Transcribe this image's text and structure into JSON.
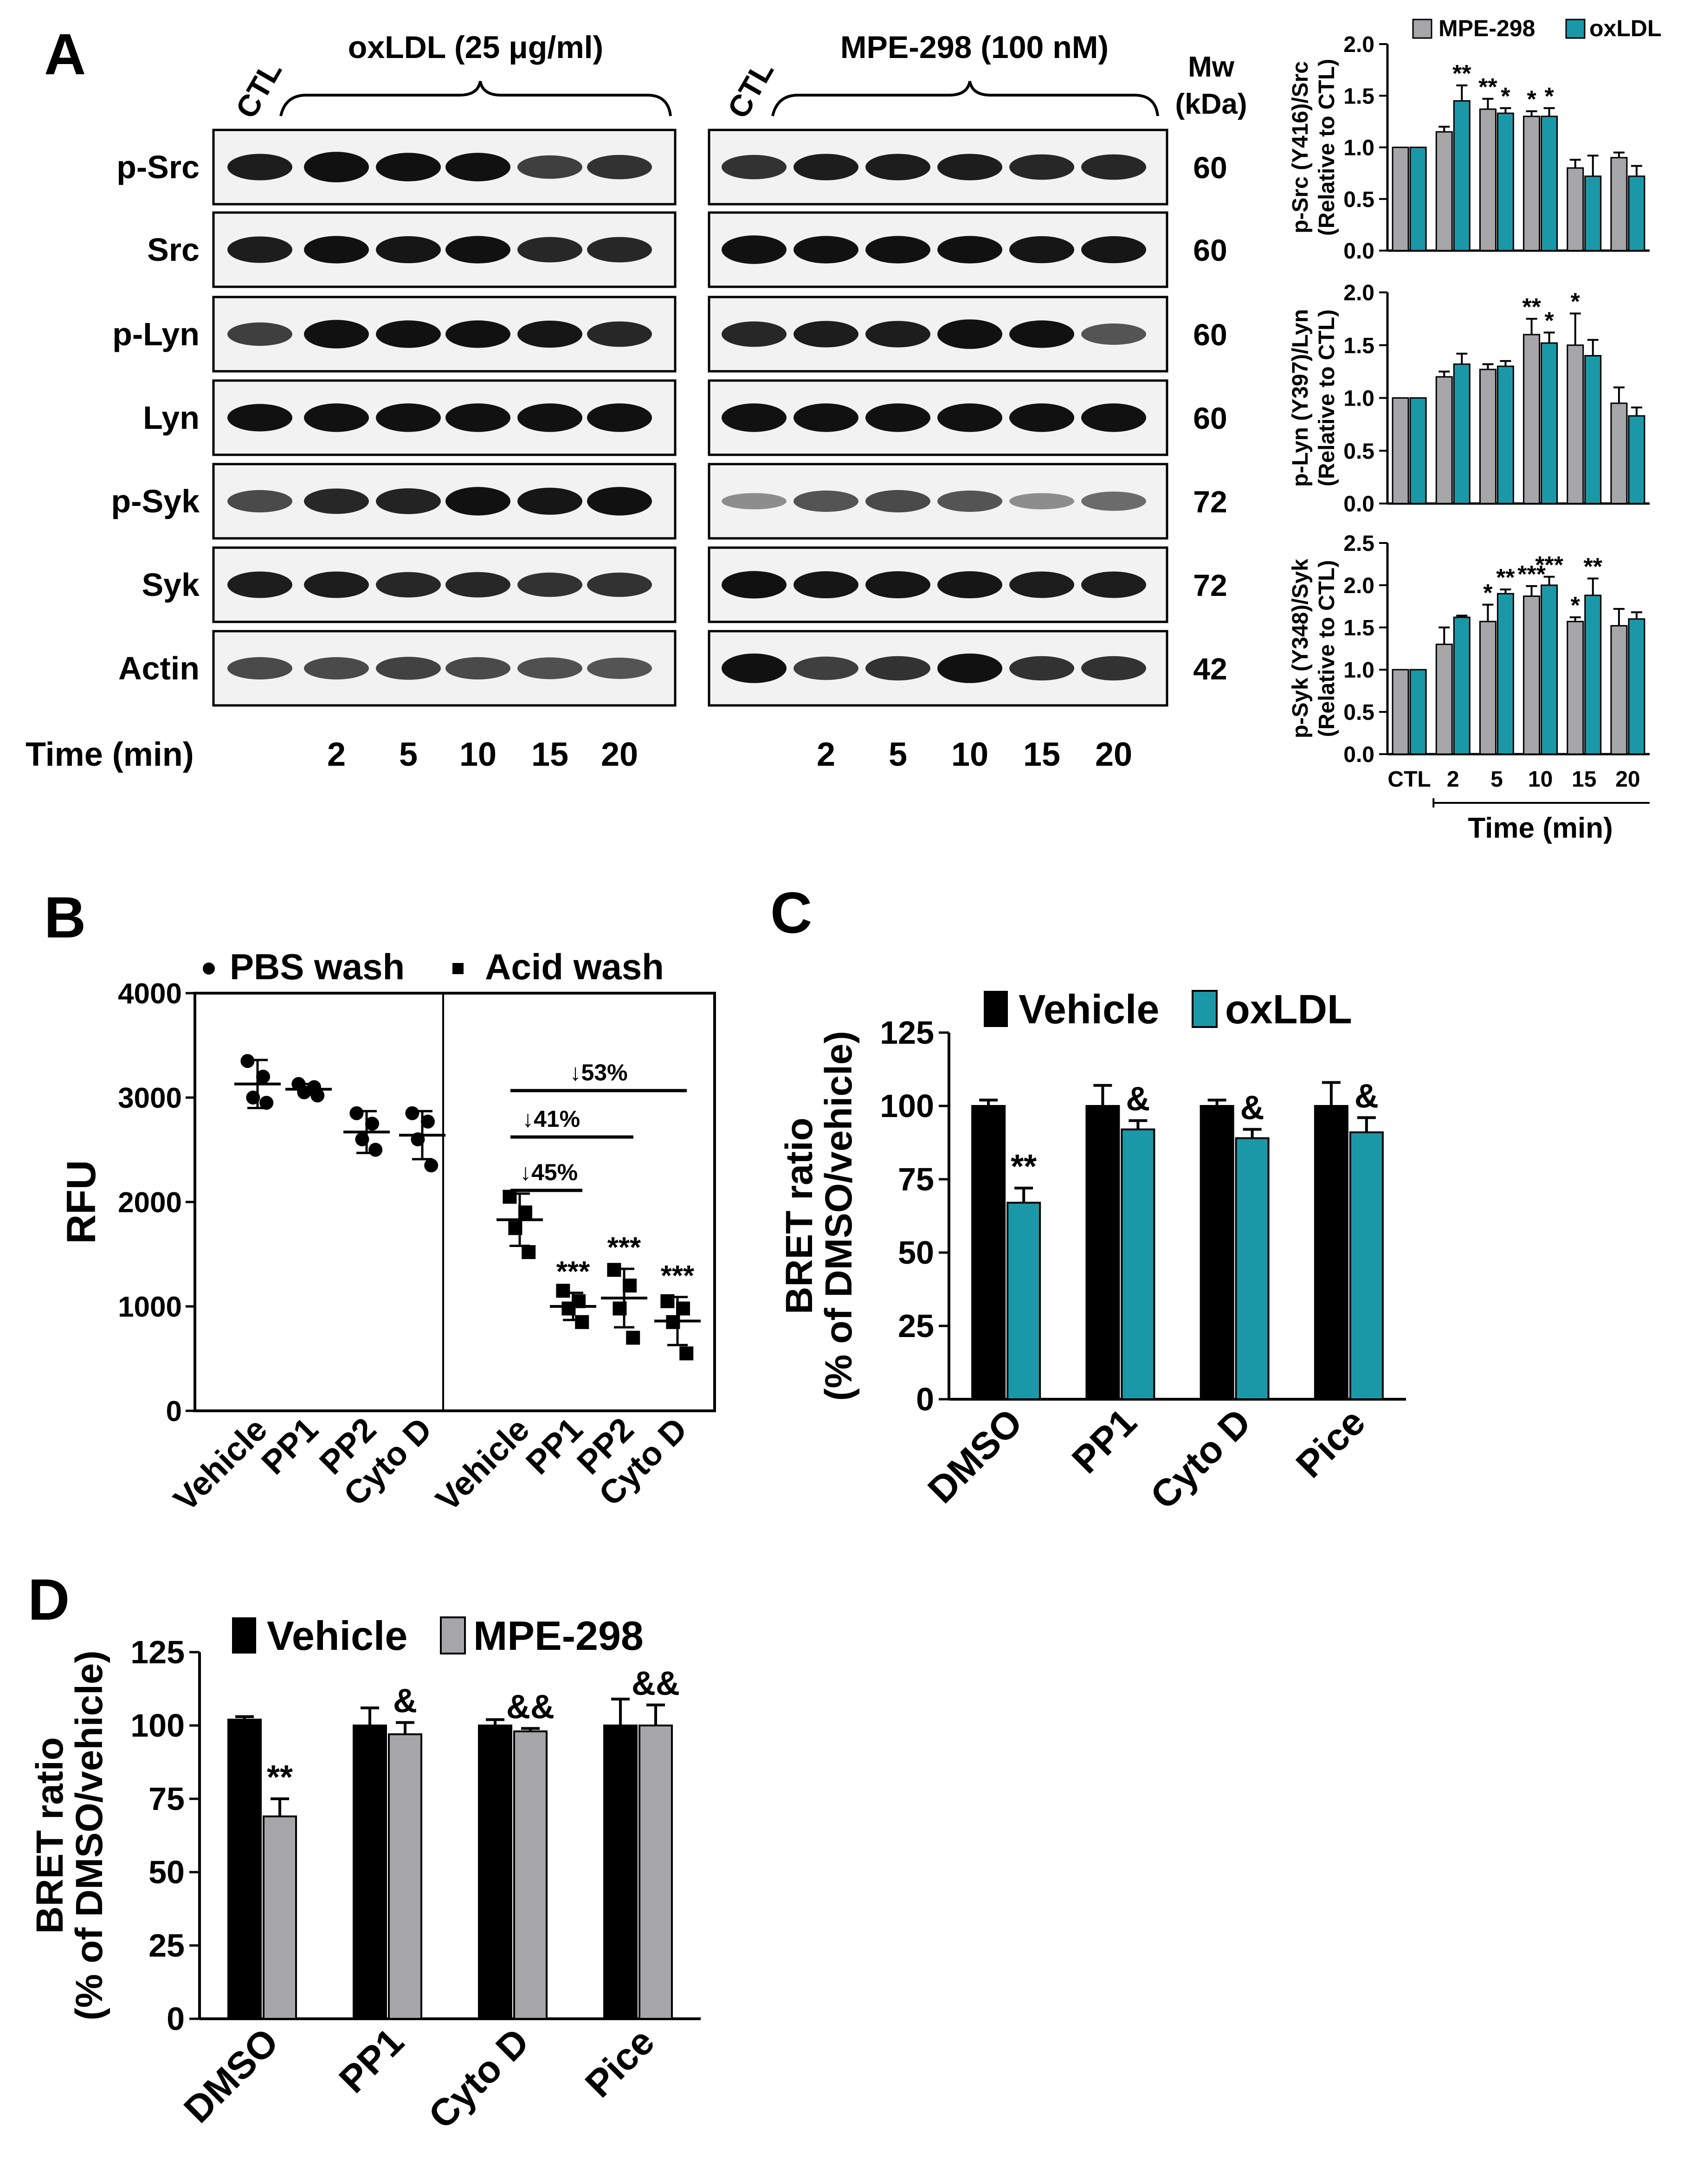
{
  "panels": {
    "a": "A",
    "b": "B",
    "c": "C",
    "d": "D"
  },
  "blot": {
    "proteins": [
      "p-Src",
      "Src",
      "p-Lyn",
      "Lyn",
      "p-Syk",
      "Syk",
      "Actin"
    ],
    "mw": [
      "60",
      "60",
      "60",
      "60",
      "72",
      "72",
      "42"
    ],
    "mw_header": [
      "Mw",
      "(kDa)"
    ],
    "left_header": "oxLDL (25 μg/ml)",
    "right_header": "MPE-298 (100 nM)",
    "ctl_label": "CTL",
    "time_label": "Time (min)",
    "time_points": [
      "2",
      "5",
      "10",
      "15",
      "20"
    ],
    "colors": {
      "band": "#111111",
      "background": "#f2f2f2"
    }
  },
  "colors": {
    "mpe": "#a6a6a8",
    "oxldl": "#1b98a8",
    "vehicle": "#000000"
  },
  "chart_data": [
    {
      "id": "A-pSrc",
      "type": "bar",
      "legend": [
        "MPE-298",
        "oxLDL"
      ],
      "categories": [
        "CTL",
        "2",
        "5",
        "10",
        "15",
        "20"
      ],
      "ylabel": [
        "p-Src (Y416)/Src",
        "(Relative to CTL)"
      ],
      "ylim": [
        0,
        2.0
      ],
      "yticks": [
        "0.0",
        "0.5",
        "1.0",
        "1.5",
        "2.0"
      ],
      "series": [
        {
          "name": "MPE-298",
          "values": [
            1.0,
            1.15,
            1.37,
            1.3,
            0.8,
            0.9
          ],
          "err": [
            0,
            0.05,
            0.1,
            0.05,
            0.08,
            0.05
          ]
        },
        {
          "name": "oxLDL",
          "values": [
            1.0,
            1.45,
            1.33,
            1.3,
            0.72,
            0.72
          ],
          "err": [
            0,
            0.15,
            0.05,
            0.08,
            0.2,
            0.1
          ]
        }
      ],
      "sig": [
        {
          "cat": 1,
          "s": 0,
          "t": ""
        },
        {
          "cat": 1,
          "s": 1,
          "t": "**"
        },
        {
          "cat": 2,
          "s": 0,
          "t": "**"
        },
        {
          "cat": 2,
          "s": 1,
          "t": "*"
        },
        {
          "cat": 3,
          "s": 0,
          "t": "*"
        },
        {
          "cat": 3,
          "s": 1,
          "t": "*"
        }
      ]
    },
    {
      "id": "A-pLyn",
      "type": "bar",
      "categories": [
        "CTL",
        "2",
        "5",
        "10",
        "15",
        "20"
      ],
      "ylabel": [
        "p-Lyn (Y397)/Lyn",
        "(Relative to CTL)"
      ],
      "ylim": [
        0,
        2.0
      ],
      "yticks": [
        "0.0",
        "0.5",
        "1.0",
        "1.5",
        "2.0"
      ],
      "series": [
        {
          "name": "MPE-298",
          "values": [
            1.0,
            1.2,
            1.27,
            1.6,
            1.5,
            0.95
          ],
          "err": [
            0,
            0.05,
            0.05,
            0.15,
            0.3,
            0.15
          ]
        },
        {
          "name": "oxLDL",
          "values": [
            1.0,
            1.32,
            1.3,
            1.52,
            1.4,
            0.83
          ],
          "err": [
            0,
            0.1,
            0.05,
            0.1,
            0.15,
            0.08
          ]
        }
      ],
      "sig": [
        {
          "cat": 3,
          "s": 0,
          "t": "**"
        },
        {
          "cat": 3,
          "s": 1,
          "t": "*"
        },
        {
          "cat": 4,
          "s": 0,
          "t": "*"
        }
      ]
    },
    {
      "id": "A-pSyk",
      "type": "bar",
      "categories": [
        "CTL",
        "2",
        "5",
        "10",
        "15",
        "20"
      ],
      "xlabel": "Time (min)",
      "ylabel": [
        "p-Syk (Y348)/Syk",
        "(Relative to CTL)"
      ],
      "ylim": [
        0,
        2.5
      ],
      "yticks": [
        "0.0",
        "0.5",
        "1.0",
        "1.5",
        "2.0",
        "2.5"
      ],
      "series": [
        {
          "name": "MPE-298",
          "values": [
            1.0,
            1.3,
            1.57,
            1.87,
            1.57,
            1.52
          ],
          "err": [
            0,
            0.2,
            0.2,
            0.12,
            0.05,
            0.2
          ]
        },
        {
          "name": "oxLDL",
          "values": [
            1.0,
            1.62,
            1.9,
            2.0,
            1.88,
            1.6
          ],
          "err": [
            0,
            0.02,
            0.05,
            0.1,
            0.2,
            0.08
          ]
        }
      ],
      "sig": [
        {
          "cat": 2,
          "s": 0,
          "t": "*"
        },
        {
          "cat": 2,
          "s": 1,
          "t": "**"
        },
        {
          "cat": 3,
          "s": 0,
          "t": "***"
        },
        {
          "cat": 3,
          "s": 1,
          "t": "***"
        },
        {
          "cat": 4,
          "s": 0,
          "t": "*"
        },
        {
          "cat": 4,
          "s": 1,
          "t": "**"
        }
      ]
    },
    {
      "id": "B",
      "type": "scatter",
      "legend": [
        "PBS wash",
        "Acid wash"
      ],
      "categories": [
        "Vehicle",
        "PP1",
        "PP2",
        "Cyto D",
        "Vehicle",
        "PP1",
        "PP2",
        "Cyto D"
      ],
      "ylabel": "RFU",
      "ylim": [
        0,
        4000
      ],
      "yticks": [
        "0",
        "1000",
        "2000",
        "3000",
        "4000"
      ],
      "groups": [
        {
          "mean": 3130,
          "sd": 230,
          "points": [
            3350,
            3200,
            3000,
            2950
          ],
          "marker": "circle"
        },
        {
          "mean": 3080,
          "sd": 50,
          "points": [
            3130,
            3100,
            3050,
            3020
          ],
          "marker": "circle"
        },
        {
          "mean": 2670,
          "sd": 200,
          "points": [
            2850,
            2750,
            2600,
            2500
          ],
          "marker": "circle"
        },
        {
          "mean": 2640,
          "sd": 230,
          "points": [
            2850,
            2770,
            2600,
            2350
          ],
          "marker": "circle"
        },
        {
          "mean": 1830,
          "sd": 250,
          "points": [
            2050,
            1900,
            1750,
            1520
          ],
          "marker": "square"
        },
        {
          "mean": 1000,
          "sd": 130,
          "points": [
            1150,
            1050,
            980,
            850
          ],
          "marker": "square"
        },
        {
          "mean": 1080,
          "sd": 280,
          "points": [
            1350,
            1200,
            980,
            700
          ],
          "marker": "square"
        },
        {
          "mean": 860,
          "sd": 230,
          "points": [
            1050,
            980,
            850,
            550
          ],
          "marker": "square"
        }
      ],
      "sig": [
        {
          "g": 5,
          "t": "***"
        },
        {
          "g": 6,
          "t": "***"
        },
        {
          "g": 7,
          "t": "***"
        }
      ],
      "brackets": [
        {
          "from": 4,
          "to": 5,
          "label": "↓45%"
        },
        {
          "from": 4,
          "to": 6,
          "label": "↓41%"
        },
        {
          "from": 4,
          "to": 7,
          "label": "↓53%"
        }
      ]
    },
    {
      "id": "C",
      "type": "bar",
      "legend": [
        "Vehicle",
        "oxLDL"
      ],
      "categories": [
        "DMSO",
        "PP1",
        "Cyto D",
        "Pice"
      ],
      "ylabel": [
        "BRET ratio",
        "(% of DMSO/vehicle)"
      ],
      "ylim": [
        0,
        125
      ],
      "yticks": [
        "0",
        "25",
        "50",
        "75",
        "100",
        "125"
      ],
      "series": [
        {
          "name": "Vehicle",
          "values": [
            100,
            100,
            100,
            100
          ],
          "err": [
            2,
            7,
            2,
            8
          ]
        },
        {
          "name": "oxLDL",
          "values": [
            67,
            92,
            89,
            91
          ],
          "err": [
            5,
            3,
            3,
            5
          ]
        }
      ],
      "sig": [
        {
          "cat": 0,
          "s": 1,
          "t": "**"
        },
        {
          "cat": 1,
          "s": 1,
          "t": "&"
        },
        {
          "cat": 2,
          "s": 1,
          "t": "&"
        },
        {
          "cat": 3,
          "s": 1,
          "t": "&"
        }
      ]
    },
    {
      "id": "D",
      "type": "bar",
      "legend": [
        "Vehicle",
        "MPE-298"
      ],
      "categories": [
        "DMSO",
        "PP1",
        "Cyto D",
        "Pice"
      ],
      "ylabel": [
        "BRET ratio",
        "(% of DMSO/vehicle)"
      ],
      "ylim": [
        0,
        125
      ],
      "yticks": [
        "0",
        "25",
        "50",
        "75",
        "100",
        "125"
      ],
      "series": [
        {
          "name": "Vehicle",
          "values": [
            102,
            100,
            100,
            100
          ],
          "err": [
            1,
            6,
            2,
            9
          ]
        },
        {
          "name": "MPE-298",
          "values": [
            69,
            97,
            98,
            100
          ],
          "err": [
            6,
            4,
            1,
            7
          ]
        }
      ],
      "sig": [
        {
          "cat": 0,
          "s": 1,
          "t": "**"
        },
        {
          "cat": 1,
          "s": 1,
          "t": "&"
        },
        {
          "cat": 2,
          "s": 1,
          "t": "&&"
        },
        {
          "cat": 3,
          "s": 1,
          "t": "&&"
        }
      ]
    }
  ]
}
